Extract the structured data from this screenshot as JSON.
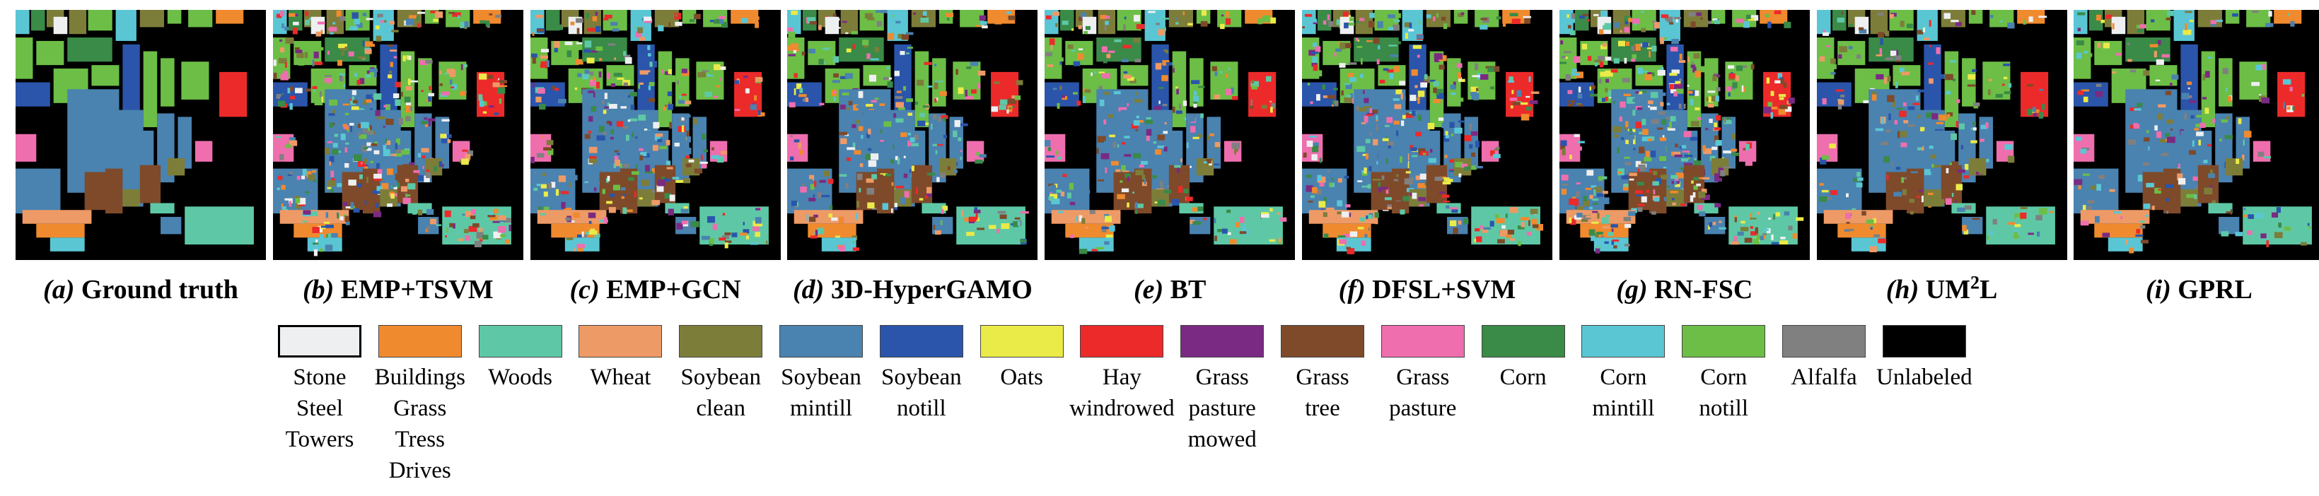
{
  "panels": [
    {
      "letter": "(a)",
      "title": "Ground truth"
    },
    {
      "letter": "(b)",
      "title": "EMP+TSVM"
    },
    {
      "letter": "(c)",
      "title": "EMP+GCN"
    },
    {
      "letter": "(d)",
      "title": "3D-HyperGAMO"
    },
    {
      "letter": "(e)",
      "title": "BT"
    },
    {
      "letter": "(f)",
      "title": "DFSL+SVM"
    },
    {
      "letter": "(g)",
      "title": "RN-FSC"
    },
    {
      "letter": "(h)",
      "title": "UM",
      "sup": "2",
      "title_suffix": "L"
    },
    {
      "letter": "(i)",
      "title": "GPRL"
    }
  ],
  "legend": [
    {
      "lines": [
        "Stone",
        "Steel",
        "Towers"
      ],
      "color": "#eeeff0"
    },
    {
      "lines": [
        "Buildings",
        "Grass",
        "Tress",
        "Drives"
      ],
      "color": "#f08a2e"
    },
    {
      "lines": [
        "Woods"
      ],
      "color": "#5ec8a6"
    },
    {
      "lines": [
        "Wheat"
      ],
      "color": "#ee9a66"
    },
    {
      "lines": [
        "Soybean",
        "clean"
      ],
      "color": "#7d7d3a"
    },
    {
      "lines": [
        "Soybean",
        "mintill"
      ],
      "color": "#4a82b0"
    },
    {
      "lines": [
        "Soybean",
        "notill"
      ],
      "color": "#2a55aa"
    },
    {
      "lines": [
        "Oats"
      ],
      "color": "#eaea48"
    },
    {
      "lines": [
        "Hay",
        "windrowed"
      ],
      "color": "#ec2a2a"
    },
    {
      "lines": [
        "Grass",
        "pasture",
        "mowed"
      ],
      "color": "#7a2a82"
    },
    {
      "lines": [
        "Grass",
        "tree"
      ],
      "color": "#7e4a2a"
    },
    {
      "lines": [
        "Grass",
        "pasture"
      ],
      "color": "#ee6eae"
    },
    {
      "lines": [
        "Corn"
      ],
      "color": "#3a8a48"
    },
    {
      "lines": [
        "Corn",
        "mintill"
      ],
      "color": "#5ac6d4"
    },
    {
      "lines": [
        "Corn",
        "notill"
      ],
      "color": "#6cbe46"
    },
    {
      "lines": [
        "Alfalfa"
      ],
      "color": "#808080"
    },
    {
      "lines": [
        "Unlabeled"
      ],
      "color": "#000000"
    }
  ]
}
